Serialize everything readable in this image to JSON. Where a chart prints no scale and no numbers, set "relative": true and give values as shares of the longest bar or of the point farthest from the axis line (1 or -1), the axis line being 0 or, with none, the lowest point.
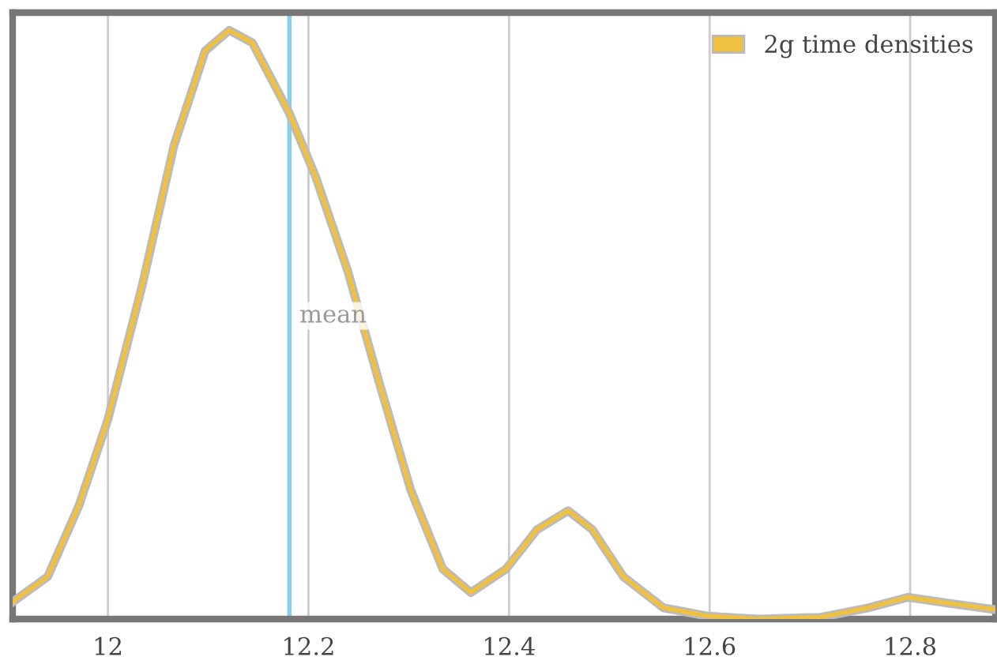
{
  "chart_data": {
    "type": "line",
    "relative": true,
    "x": [
      11.905,
      11.94,
      11.971,
      12.0,
      12.034,
      12.066,
      12.097,
      12.121,
      12.144,
      12.181,
      12.207,
      12.239,
      12.27,
      12.302,
      12.334,
      12.362,
      12.397,
      12.428,
      12.459,
      12.483,
      12.514,
      12.554,
      12.598,
      12.648,
      12.711,
      12.758,
      12.798,
      12.837,
      12.885
    ],
    "series": [
      {
        "name": "2g time densities",
        "color": "#f0c040",
        "values": [
          0.029,
          0.072,
          0.192,
          0.339,
          0.565,
          0.805,
          0.965,
          1.0,
          0.979,
          0.859,
          0.752,
          0.592,
          0.405,
          0.219,
          0.085,
          0.045,
          0.085,
          0.152,
          0.184,
          0.152,
          0.072,
          0.019,
          0.005,
          0.0,
          0.003,
          0.019,
          0.037,
          0.027,
          0.016
        ]
      }
    ],
    "xlim": [
      11.905,
      12.885
    ],
    "xticks": [
      12,
      12.2,
      12.4,
      12.6,
      12.8
    ],
    "ref_lines": [
      {
        "axis": "x",
        "value": 12.181,
        "label": "mean",
        "color": "#87ceeb"
      }
    ],
    "grid": "x",
    "legend": "top right",
    "marker": "none",
    "line_style": "solid"
  }
}
